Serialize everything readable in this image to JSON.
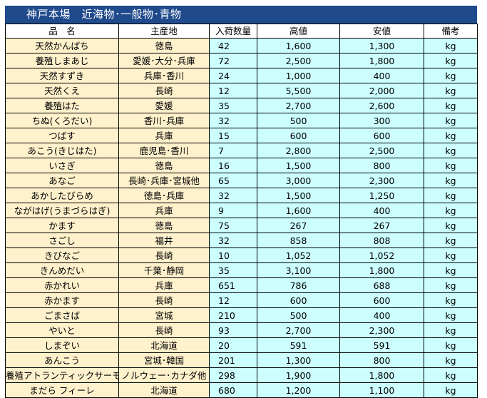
{
  "title": "神戸本場　近海物･一般物･青物",
  "headers": [
    "品　名",
    "主産地",
    "入荷数量",
    "高値",
    "安値",
    "備考"
  ],
  "rows": [
    {
      "name": "天然かんぱち",
      "origin": "徳島",
      "qty": "42",
      "high": "1,600",
      "low": "1,300",
      "note": "kg"
    },
    {
      "name": "養殖しまあじ",
      "origin": "愛媛･大分･兵庫",
      "qty": "72",
      "high": "2,500",
      "low": "1,800",
      "note": "kg"
    },
    {
      "name": "天然すずき",
      "origin": "兵庫･香川",
      "qty": "24",
      "high": "1,000",
      "low": "400",
      "note": "kg"
    },
    {
      "name": "天然くえ",
      "origin": "長崎",
      "qty": "12",
      "high": "5,500",
      "low": "2,000",
      "note": "kg"
    },
    {
      "name": "養殖はた",
      "origin": "愛媛",
      "qty": "35",
      "high": "2,700",
      "low": "2,600",
      "note": "kg"
    },
    {
      "name": "ちぬ(くろだい)",
      "origin": "香川･兵庫",
      "qty": "32",
      "high": "500",
      "low": "300",
      "note": "kg"
    },
    {
      "name": "つばす",
      "origin": "兵庫",
      "qty": "15",
      "high": "600",
      "low": "600",
      "note": "kg"
    },
    {
      "name": "あこう(きじはた)",
      "origin": "鹿児島･香川",
      "qty": "7",
      "high": "2,800",
      "low": "2,500",
      "note": "kg"
    },
    {
      "name": "いさぎ",
      "origin": "徳島",
      "qty": "16",
      "high": "1,500",
      "low": "800",
      "note": "kg"
    },
    {
      "name": "あなご",
      "origin": "長崎･兵庫･宮城他",
      "qty": "65",
      "high": "3,000",
      "low": "2,300",
      "note": "kg"
    },
    {
      "name": "あかしたびらめ",
      "origin": "徳島･兵庫",
      "qty": "32",
      "high": "1,500",
      "low": "1,250",
      "note": "kg"
    },
    {
      "name": "ながはげ(うまづらはぎ)",
      "origin": "兵庫",
      "qty": "9",
      "high": "1,600",
      "low": "400",
      "note": "kg"
    },
    {
      "name": "かます",
      "origin": "徳島",
      "qty": "75",
      "high": "267",
      "low": "267",
      "note": "kg"
    },
    {
      "name": "さごし",
      "origin": "福井",
      "qty": "32",
      "high": "858",
      "low": "808",
      "note": "kg"
    },
    {
      "name": "きびなご",
      "origin": "長崎",
      "qty": "10",
      "high": "1,052",
      "low": "1,052",
      "note": "kg"
    },
    {
      "name": "きんめだい",
      "origin": "千葉･静岡",
      "qty": "35",
      "high": "3,100",
      "low": "1,800",
      "note": "kg"
    },
    {
      "name": "赤かれい",
      "origin": "兵庫",
      "qty": "651",
      "high": "786",
      "low": "688",
      "note": "kg"
    },
    {
      "name": "赤かます",
      "origin": "長崎",
      "qty": "12",
      "high": "600",
      "low": "600",
      "note": "kg"
    },
    {
      "name": "ごまさば",
      "origin": "宮城",
      "qty": "210",
      "high": "500",
      "low": "400",
      "note": "kg"
    },
    {
      "name": "やいと",
      "origin": "長崎",
      "qty": "93",
      "high": "2,700",
      "low": "2,300",
      "note": "kg"
    },
    {
      "name": "しまぞい",
      "origin": "北海道",
      "qty": "20",
      "high": "591",
      "low": "591",
      "note": "kg"
    },
    {
      "name": "あんこう",
      "origin": "宮城･韓国",
      "qty": "201",
      "high": "1,300",
      "low": "800",
      "note": "kg"
    },
    {
      "name": "養殖アトランティックサーモン",
      "origin": "ノルウェー･カナダ他",
      "qty": "298",
      "high": "1,900",
      "low": "1,800",
      "note": "kg"
    },
    {
      "name": "まだら フィーレ",
      "origin": "北海道",
      "qty": "680",
      "high": "1,200",
      "low": "1,100",
      "note": "kg"
    }
  ],
  "colors": {
    "title_bg": "#1f4a8c",
    "name_bg": "#fff1cc",
    "value_bg": "#ccfefe"
  }
}
